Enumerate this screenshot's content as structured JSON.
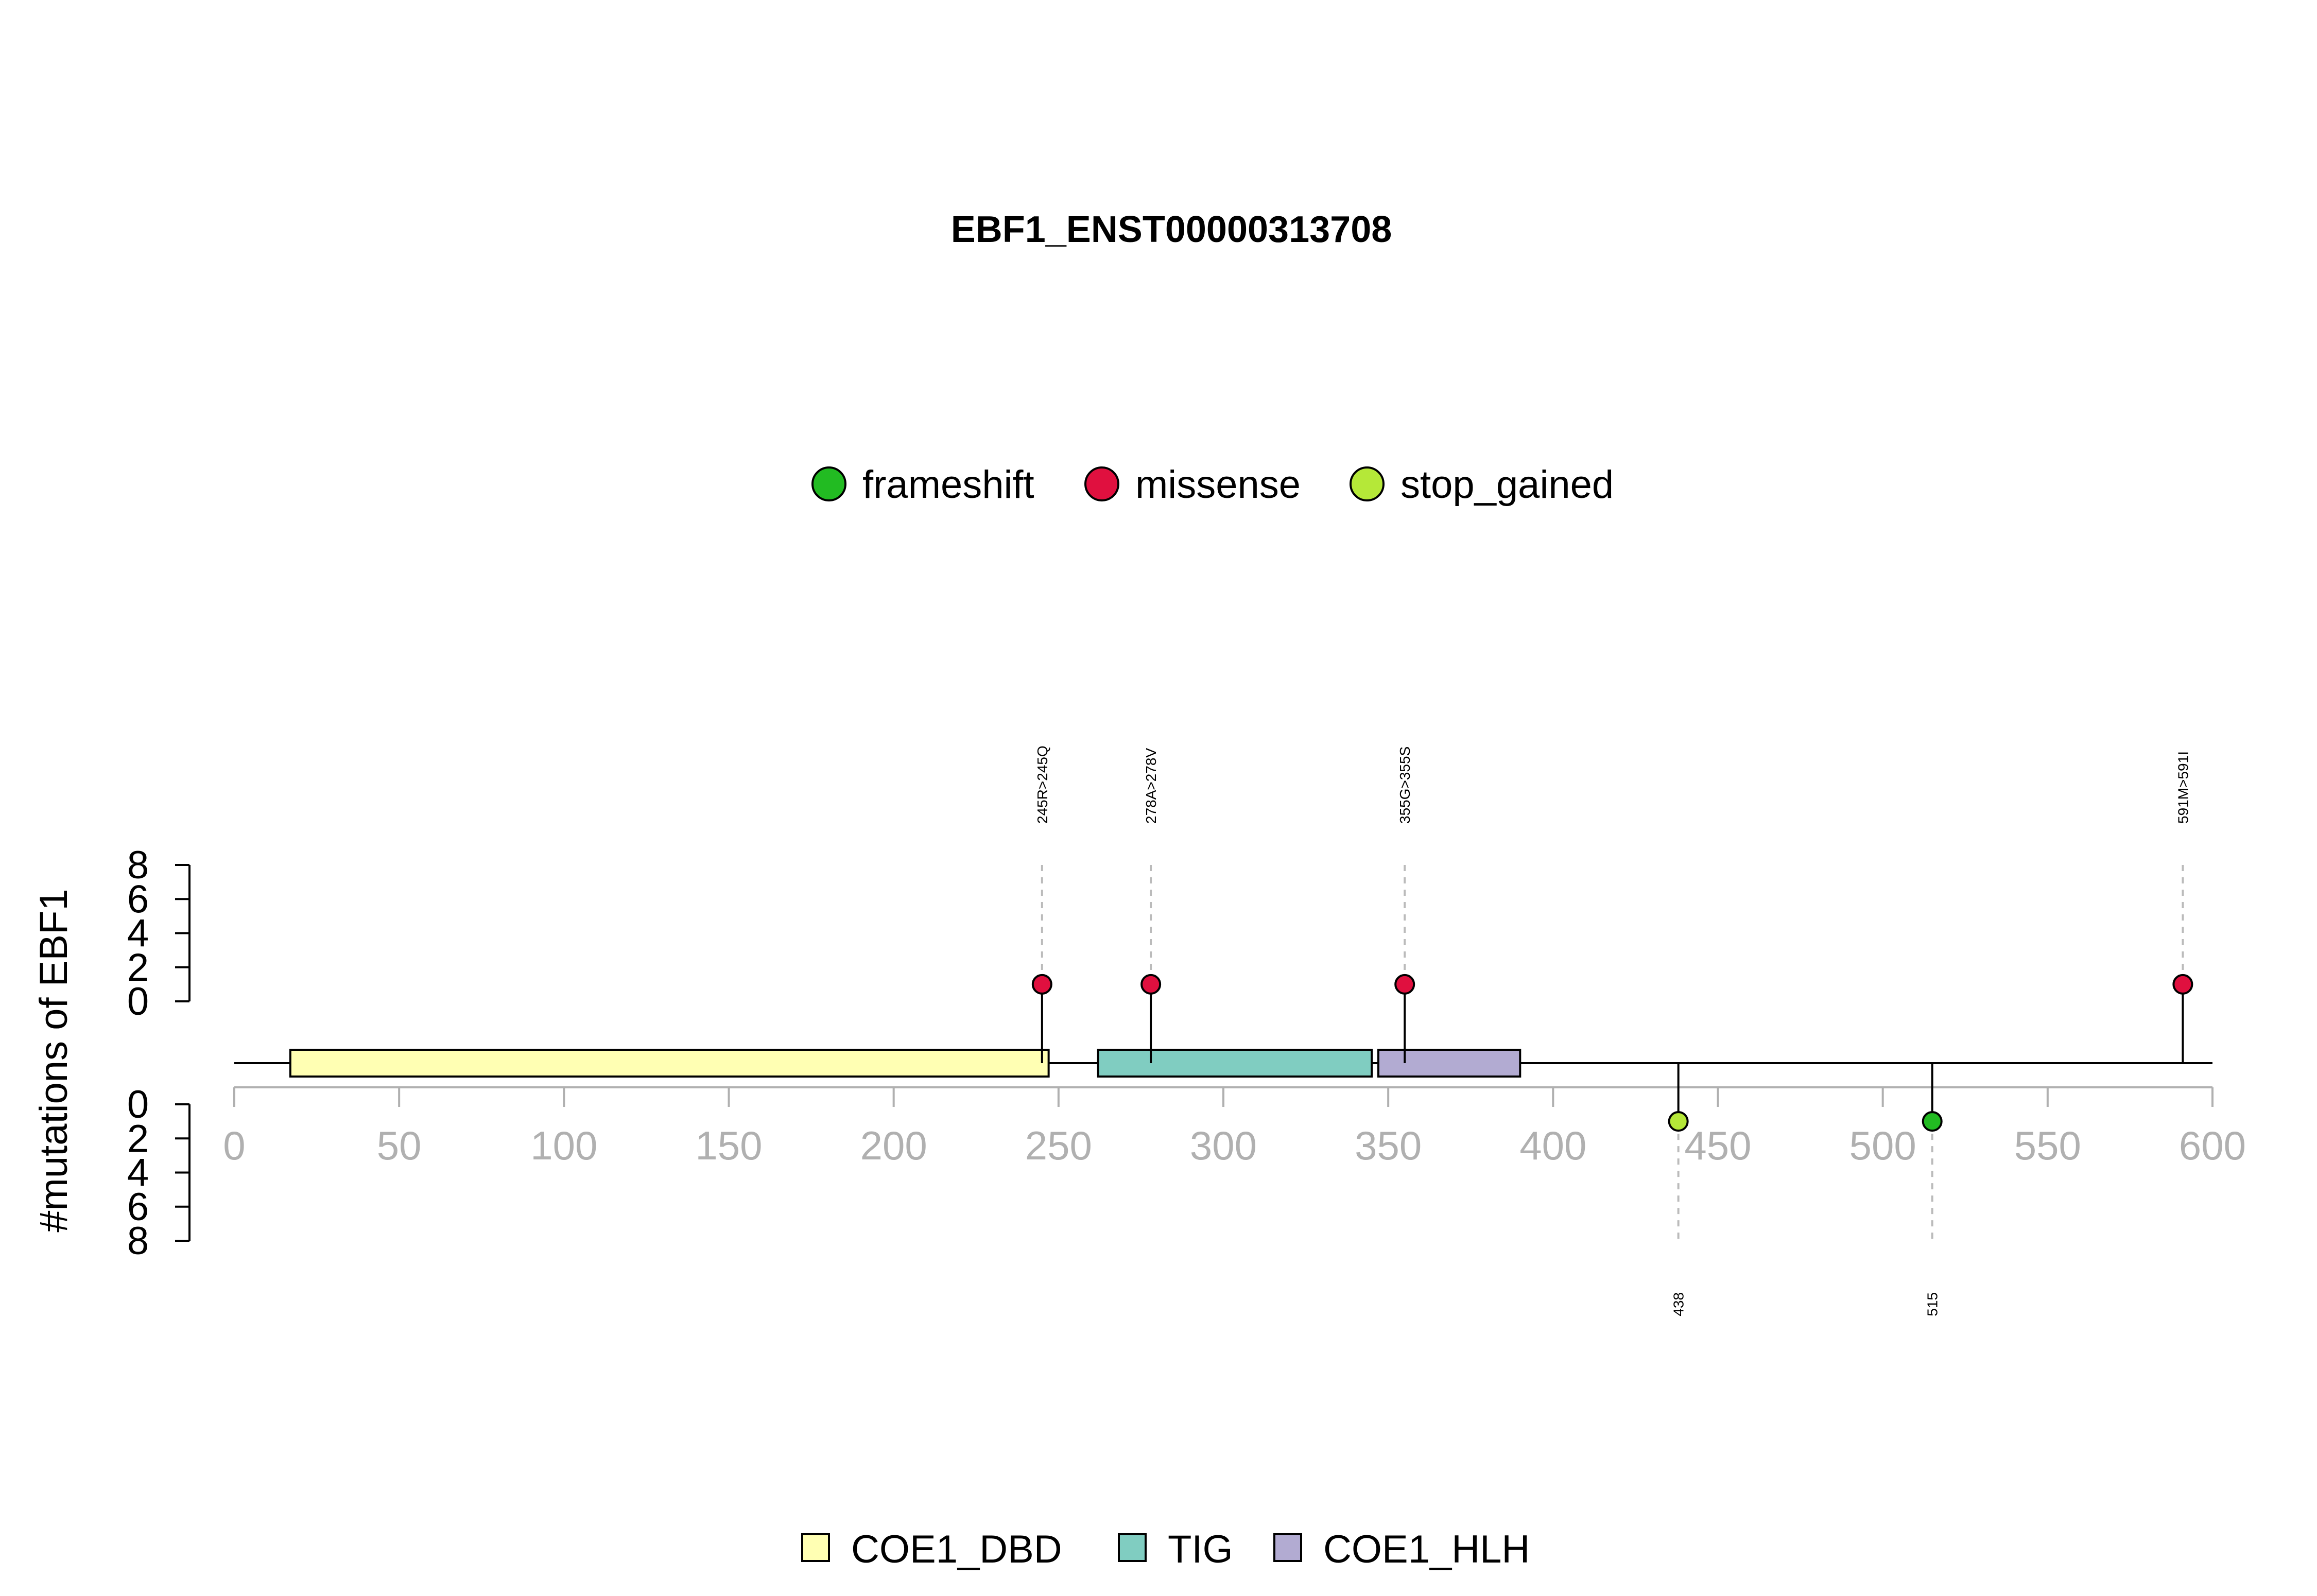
{
  "chart_data": {
    "type": "lollipop",
    "title": "EBF1_ENST00000313708",
    "ylabel": "#mutations of EBF1",
    "xlim": [
      0,
      600
    ],
    "x_ticks": [
      0,
      50,
      100,
      150,
      200,
      250,
      300,
      350,
      400,
      450,
      500,
      550,
      600
    ],
    "y_ticks_upper": [
      0,
      2,
      4,
      6,
      8
    ],
    "y_ticks_lower": [
      0,
      2,
      4,
      6,
      8
    ],
    "ylim": [
      0,
      8
    ],
    "mutation_legend": [
      {
        "label": "frameshift",
        "color": "#22bb22"
      },
      {
        "label": "missense",
        "color": "#e0103f"
      },
      {
        "label": "stop_gained",
        "color": "#b5e838"
      }
    ],
    "domain_legend": [
      {
        "label": "COE1_DBD",
        "color": "#ffffb3"
      },
      {
        "label": "TIG",
        "color": "#80cdc1"
      },
      {
        "label": "COE1_HLH",
        "color": "#b2abd2"
      }
    ],
    "domains": [
      {
        "name": "COE1_DBD",
        "start": 17,
        "end": 247
      },
      {
        "name": "TIG",
        "start": 262,
        "end": 345
      },
      {
        "name": "COE1_HLH",
        "start": 347,
        "end": 390
      }
    ],
    "mutations": [
      {
        "position": 245,
        "count": 1,
        "type": "missense",
        "side": "upper",
        "label": "245R>245Q"
      },
      {
        "position": 278,
        "count": 1,
        "type": "missense",
        "side": "upper",
        "label": "278A>278V"
      },
      {
        "position": 355,
        "count": 1,
        "type": "missense",
        "side": "upper",
        "label": "355G>355S"
      },
      {
        "position": 591,
        "count": 1,
        "type": "missense",
        "side": "upper",
        "label": "591M>591I"
      },
      {
        "position": 438,
        "count": 1,
        "type": "stop_gained",
        "side": "lower",
        "label": "438"
      },
      {
        "position": 515,
        "count": 1,
        "type": "frameshift",
        "side": "lower",
        "label": "515"
      }
    ]
  }
}
